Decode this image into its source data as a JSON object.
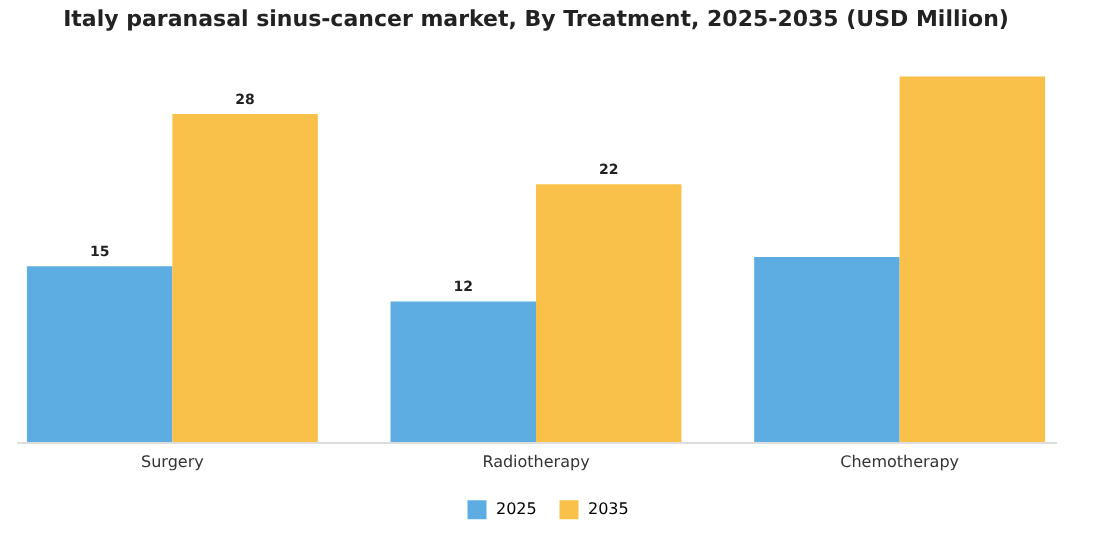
{
  "chart_data": {
    "type": "bar",
    "title": "Italy paranasal sinus-cancer market, By Treatment, 2025-2035 (USD Million)",
    "categories": [
      "Surgery",
      "Radiotherapy",
      "Chemotherapy"
    ],
    "series": [
      {
        "name": "2025",
        "color": "#5dade2",
        "values": [
          15,
          12,
          15.8
        ],
        "value_labels": [
          "15",
          "12",
          null
        ]
      },
      {
        "name": "2035",
        "color": "#f9c04a",
        "values": [
          28,
          22,
          31.2
        ],
        "value_labels": [
          "28",
          "22",
          null
        ]
      }
    ],
    "legend": "bottom"
  }
}
